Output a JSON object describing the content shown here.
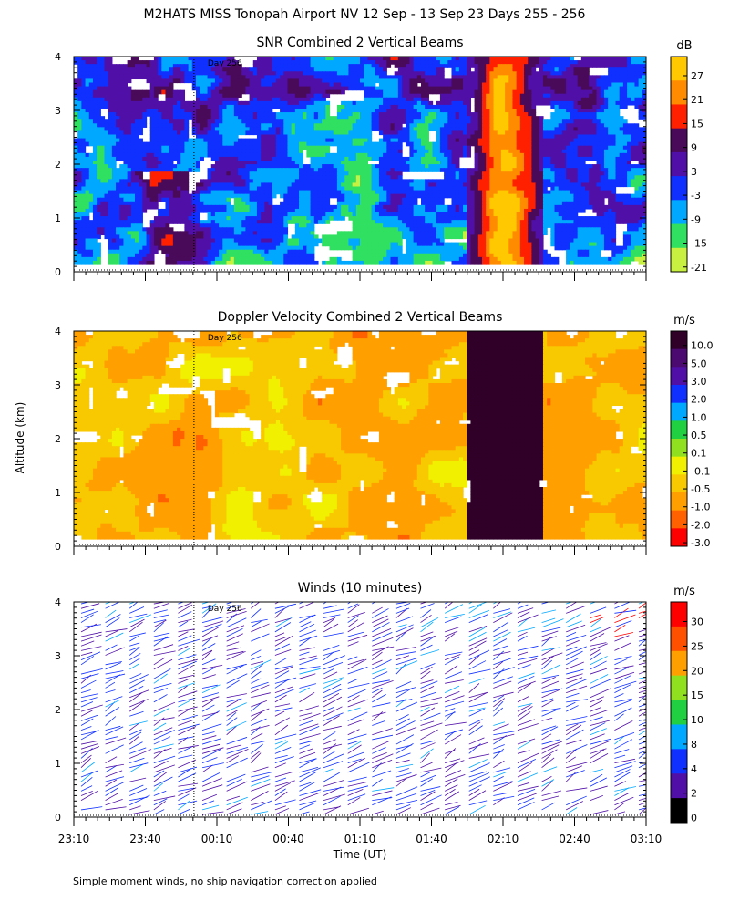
{
  "title": "M2HATS MISS Tonopah Airport NV  12 Sep - 13 Sep 23 Days 255 - 256",
  "ylabel": "Altitude (km)",
  "xlabel": "Time (UT)",
  "footnote": "Simple moment winds, no ship navigation correction applied",
  "day_marker": "Day 256",
  "x_ticks": [
    "23:10",
    "23:40",
    "00:10",
    "00:40",
    "01:10",
    "01:40",
    "02:10",
    "02:40",
    "03:10"
  ],
  "y_ticks": [
    "0",
    "1",
    "2",
    "3",
    "4"
  ],
  "chart_data": [
    {
      "type": "heatmap",
      "title": "SNR Combined 2 Vertical Beams",
      "colorbar_unit": "dB",
      "colorbar_labels": [
        "27",
        "21",
        "15",
        "9",
        "3",
        "-3",
        "-9",
        "-15",
        "-21"
      ],
      "colorbar_colors": [
        "#ffc800",
        "#ff8c00",
        "#ff2000",
        "#4a0a5a",
        "#5010a8",
        "#1030ff",
        "#00a8ff",
        "#30e060",
        "#c8f040"
      ],
      "xlim": [
        "23:10",
        "03:10"
      ],
      "ylim": [
        0,
        4
      ],
      "ylabel": "Altitude (km)"
    },
    {
      "type": "heatmap",
      "title": "Doppler Velocity Combined 2 Vertical Beams",
      "colorbar_unit": "m/s",
      "colorbar_labels": [
        "10.0",
        "5.0",
        "3.0",
        "2.0",
        "1.0",
        "0.5",
        "0.1",
        "-0.1",
        "-0.5",
        "-1.0",
        "-2.0",
        "-3.0"
      ],
      "colorbar_colors": [
        "#300028",
        "#4a0a70",
        "#5010a8",
        "#1030ff",
        "#00a8ff",
        "#20d040",
        "#90e020",
        "#f0f000",
        "#f8c800",
        "#ffa000",
        "#ff6000",
        "#ff0000"
      ],
      "xlim": [
        "23:10",
        "03:10"
      ],
      "ylim": [
        0,
        4
      ],
      "ylabel": "Altitude (km)"
    },
    {
      "type": "scatter",
      "title": "Winds (10 minutes)",
      "colorbar_unit": "m/s",
      "colorbar_labels": [
        "30",
        "25",
        "20",
        "15",
        "10",
        "8",
        "4",
        "2",
        "0"
      ],
      "colorbar_colors": [
        "#ff0000",
        "#ff5000",
        "#ffa000",
        "#90e020",
        "#20d040",
        "#00a8ff",
        "#1030ff",
        "#5010a8",
        "#000000"
      ],
      "xlim": [
        "23:10",
        "03:10"
      ],
      "ylim": [
        0,
        4
      ],
      "xlabel": "Time (UT)",
      "ylabel": "Altitude (km)"
    }
  ]
}
